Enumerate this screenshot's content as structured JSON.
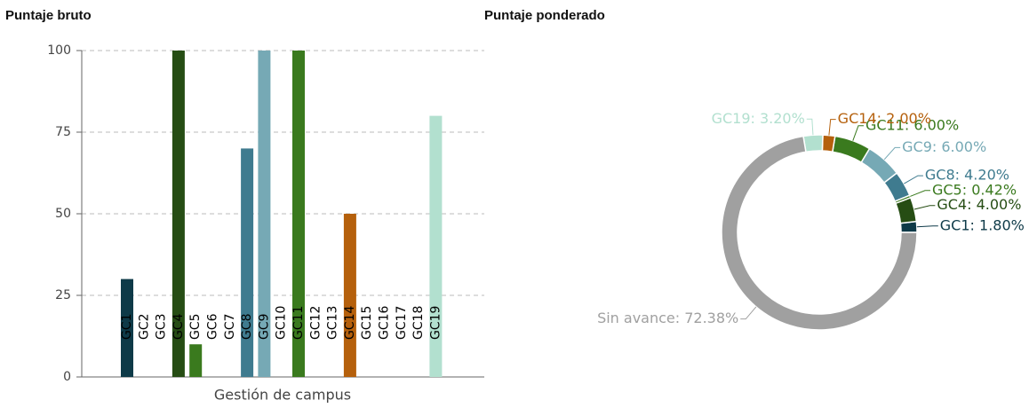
{
  "chart_data": [
    {
      "type": "bar",
      "title": "Puntaje bruto",
      "x_label": "Gestión de campus",
      "categories": [
        "GC1",
        "GC2",
        "GC3",
        "GC4",
        "GC5",
        "GC6",
        "GC7",
        "GC8",
        "GC9",
        "GC10",
        "GC11",
        "GC12",
        "GC13",
        "GC14",
        "GC15",
        "GC16",
        "GC17",
        "GC18",
        "GC19"
      ],
      "values": [
        30,
        0,
        0,
        100,
        10,
        0,
        0,
        70,
        100,
        0,
        100,
        0,
        0,
        50,
        0,
        0,
        0,
        0,
        80
      ],
      "colors": [
        "#0e3a48",
        "#999999",
        "#999999",
        "#264d14",
        "#3a7a1e",
        "#999999",
        "#999999",
        "#3f7b8f",
        "#76a9b5",
        "#999999",
        "#3a7a1e",
        "#999999",
        "#999999",
        "#b5600c",
        "#999999",
        "#999999",
        "#999999",
        "#999999",
        "#b2e0cf"
      ],
      "ylim": [
        0,
        100
      ],
      "yticks": [
        0,
        25,
        50,
        75,
        100
      ],
      "grid": true
    },
    {
      "type": "pie",
      "title": "Puntaje ponderado",
      "categories": [
        "GC1",
        "GC4",
        "GC5",
        "GC8",
        "GC9",
        "GC11",
        "GC14",
        "GC19",
        "Sin avance"
      ],
      "values": [
        1.8,
        4.0,
        0.42,
        4.2,
        6.0,
        6.0,
        2.0,
        3.2,
        72.38
      ],
      "value_labels": [
        "GC1: 1.80%",
        "GC4: 4.00%",
        "GC5: 0.42%",
        "GC8: 4.20%",
        "GC9: 6.00%",
        "GC11: 6.00%",
        "GC14: 2.00%",
        "GC19: 3.20%",
        "Sin avance: 72.38%"
      ],
      "colors": [
        "#0e3a48",
        "#264d14",
        "#3a7a1e",
        "#3f7b8f",
        "#76a9b5",
        "#3a7a1e",
        "#b5600c",
        "#b2e0cf",
        "#a0a0a0"
      ]
    }
  ]
}
